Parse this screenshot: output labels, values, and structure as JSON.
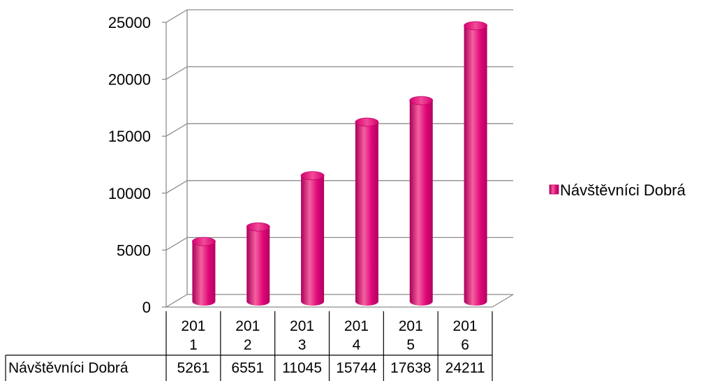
{
  "chart_data": {
    "type": "bar",
    "categories": [
      "2011",
      "2012",
      "2013",
      "2014",
      "2015",
      "2016"
    ],
    "series": [
      {
        "name": "Návštěvníci Dobrá",
        "values": [
          5261,
          6551,
          11045,
          15744,
          17638,
          24211
        ]
      }
    ],
    "ylim": [
      0,
      25000
    ],
    "yticks": [
      "0",
      "5000",
      "10000",
      "15000",
      "20000",
      "25000"
    ],
    "category_labels_wrapped": [
      [
        "201",
        "1"
      ],
      [
        "201",
        "2"
      ],
      [
        "201",
        "3"
      ],
      [
        "201",
        "4"
      ],
      [
        "201",
        "5"
      ],
      [
        "201",
        "6"
      ]
    ],
    "table_row_label": "Návštěvníci Dobrá",
    "table_values": [
      "5261",
      "6551",
      "11045",
      "15744",
      "17638",
      "24211"
    ],
    "legend_position": "right",
    "grid": true,
    "three_d": true,
    "bar_color": "#e6007e"
  }
}
